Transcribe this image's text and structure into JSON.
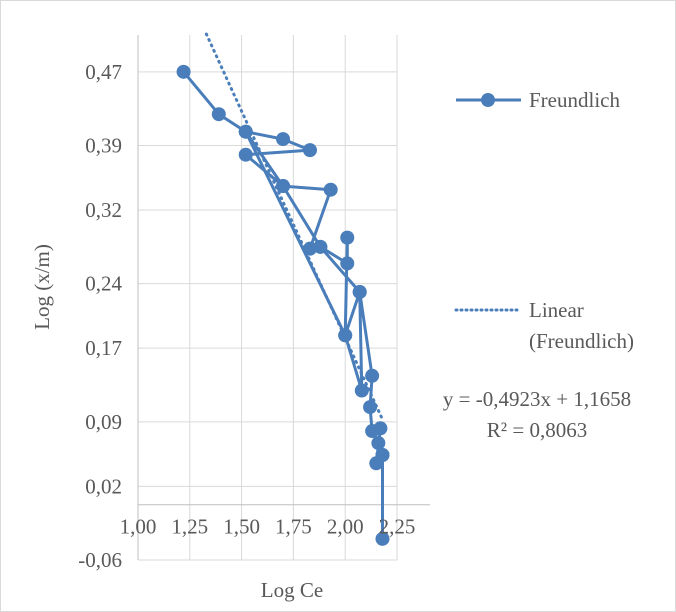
{
  "chart_data": {
    "type": "scatter",
    "title": "",
    "xlabel": "Log Ce",
    "ylabel": "Log (x/m)",
    "xlim": [
      1.0,
      2.25
    ],
    "ylim": [
      -0.06,
      0.51
    ],
    "xticks": [
      "1,00",
      "1,25",
      "1,50",
      "1,75",
      "2,00",
      "2,25"
    ],
    "xtick_values": [
      1.0,
      1.25,
      1.5,
      1.75,
      2.0,
      2.25
    ],
    "yticks": [
      "0,47",
      "0,39",
      "0,32",
      "0,24",
      "0,17",
      "0,09",
      "0,02",
      "-0,06"
    ],
    "ytick_values": [
      0.47,
      0.39,
      0.32,
      0.24,
      0.17,
      0.09,
      0.02,
      -0.06
    ],
    "grid": true,
    "x_axis_crosses_y_at": 0.0,
    "series": [
      {
        "name": "Freundlich",
        "style": "line-with-markers",
        "color": "#4a7ebb",
        "x": [
          1.22,
          1.39,
          1.52,
          1.7,
          1.83,
          1.52,
          1.7,
          1.93,
          1.83,
          1.88,
          1.7,
          1.52,
          2.0,
          2.01,
          2.01,
          1.88,
          2.07,
          2.0,
          2.08,
          2.07,
          2.13,
          2.12,
          2.13,
          2.17,
          2.15,
          2.18,
          2.16,
          2.18,
          2.18
        ],
        "y": [
          0.47,
          0.424,
          0.405,
          0.397,
          0.385,
          0.38,
          0.346,
          0.342,
          0.278,
          0.28,
          0.346,
          0.405,
          0.184,
          0.29,
          0.262,
          0.28,
          0.231,
          0.184,
          0.124,
          0.231,
          0.14,
          0.106,
          0.08,
          0.083,
          0.045,
          0.054,
          0.067,
          0.054,
          -0.037
        ]
      },
      {
        "name": "Linear (Freundlich)",
        "style": "dotted-trendline",
        "color": "#4a7ebb",
        "slope": -0.4923,
        "intercept": 1.1658,
        "x_range": [
          1.33,
          2.18
        ]
      }
    ],
    "annotations": {
      "equation": "y = -0,4923x + 1,1658",
      "r_squared": "R² = 0,8063"
    },
    "legend_position": "right"
  }
}
